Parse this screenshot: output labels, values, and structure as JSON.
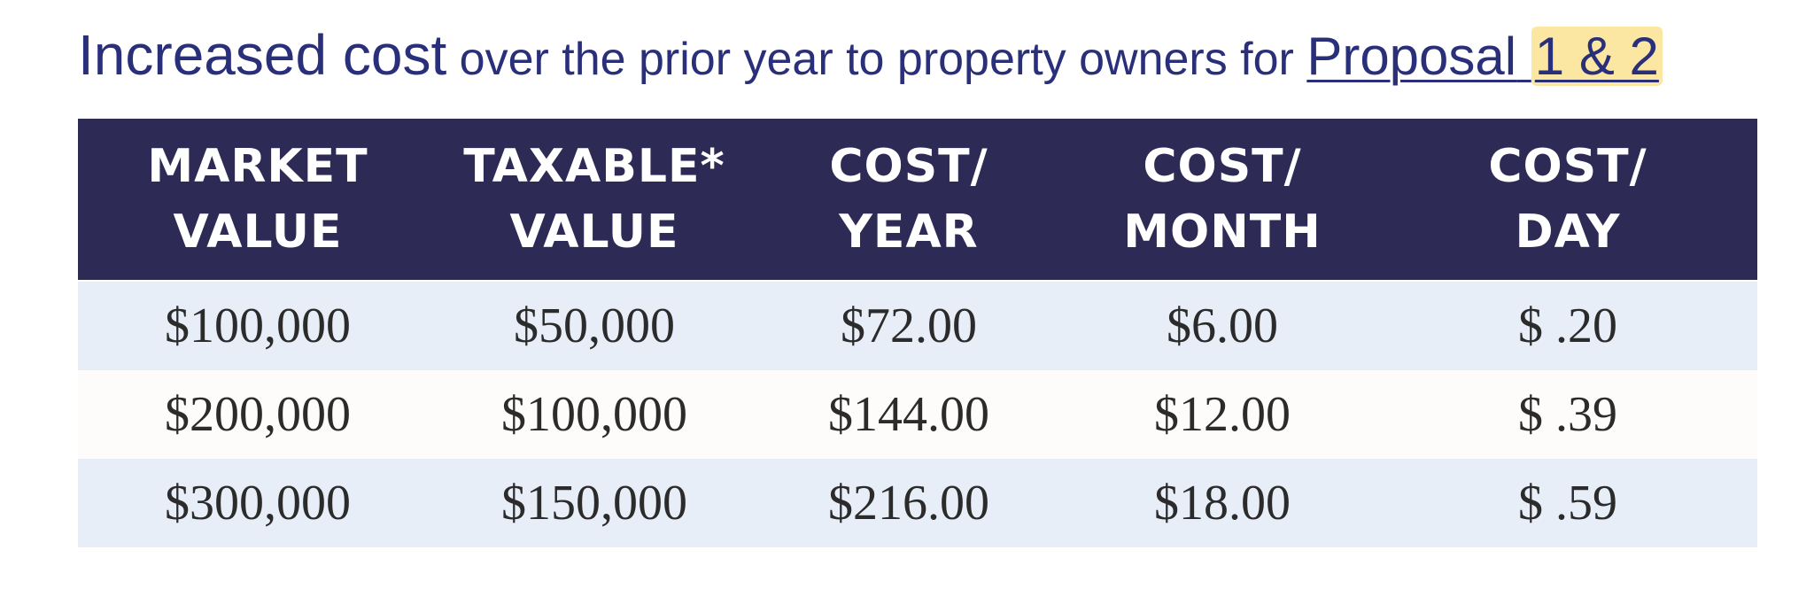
{
  "heading": {
    "part1": "Increased cost",
    "part2": " over the prior year to property owners for ",
    "link_pre": "Proposal",
    "link_highlight": "1 & 2"
  },
  "table": {
    "headers": [
      [
        "MARKET",
        "VALUE"
      ],
      [
        "TAXABLE*",
        "VALUE"
      ],
      [
        "COST/",
        "YEAR"
      ],
      [
        "COST/",
        "MONTH"
      ],
      [
        "COST/",
        "DAY"
      ]
    ],
    "rows": [
      [
        "$100,000",
        "$50,000",
        "$72.00",
        "$6.00",
        "$ .20"
      ],
      [
        "$200,000",
        "$100,000",
        "$144.00",
        "$12.00",
        "$ .39"
      ],
      [
        "$300,000",
        "$150,000",
        "$216.00",
        "$18.00",
        "$ .59"
      ]
    ]
  },
  "colors": {
    "heading_text": "#2a2f7a",
    "header_bg": "#2d2b55",
    "row_shade": "#e7eef8",
    "highlight": "#fbe7a1"
  }
}
